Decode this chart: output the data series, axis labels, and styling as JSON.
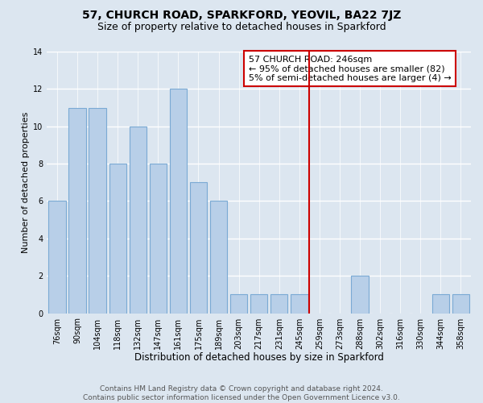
{
  "title1": "57, CHURCH ROAD, SPARKFORD, YEOVIL, BA22 7JZ",
  "title2": "Size of property relative to detached houses in Sparkford",
  "xlabel": "Distribution of detached houses by size in Sparkford",
  "ylabel": "Number of detached properties",
  "bar_labels": [
    "76sqm",
    "90sqm",
    "104sqm",
    "118sqm",
    "132sqm",
    "147sqm",
    "161sqm",
    "175sqm",
    "189sqm",
    "203sqm",
    "217sqm",
    "231sqm",
    "245sqm",
    "259sqm",
    "273sqm",
    "288sqm",
    "302sqm",
    "316sqm",
    "330sqm",
    "344sqm",
    "358sqm"
  ],
  "bar_values": [
    6,
    11,
    11,
    8,
    10,
    8,
    12,
    7,
    6,
    1,
    1,
    1,
    1,
    0,
    0,
    2,
    0,
    0,
    0,
    1,
    1
  ],
  "bar_color": "#b8cfe8",
  "bar_edge_color": "#7aaad4",
  "vline_color": "#cc0000",
  "annotation_title": "57 CHURCH ROAD: 246sqm",
  "annotation_line1": "← 95% of detached houses are smaller (82)",
  "annotation_line2": "5% of semi-detached houses are larger (4) →",
  "annotation_box_edge": "#cc0000",
  "footer1": "Contains HM Land Registry data © Crown copyright and database right 2024.",
  "footer2": "Contains public sector information licensed under the Open Government Licence v3.0.",
  "ylim": [
    0,
    14
  ],
  "yticks": [
    0,
    2,
    4,
    6,
    8,
    10,
    12,
    14
  ],
  "bg_color": "#dce6f0",
  "grid_color": "#ffffff",
  "title1_fontsize": 10,
  "title2_fontsize": 9,
  "xlabel_fontsize": 8.5,
  "ylabel_fontsize": 8,
  "tick_fontsize": 7,
  "annotation_fontsize": 8,
  "footer_fontsize": 6.5
}
